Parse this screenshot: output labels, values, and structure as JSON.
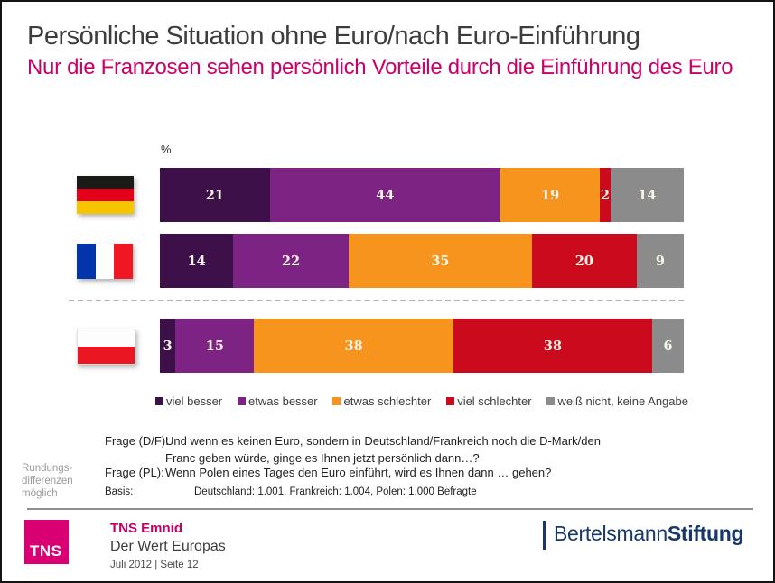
{
  "title": "Persönliche Situation ohne Euro/nach Euro-Einführung",
  "subtitle": "Nur die Franzosen sehen persönlich Vorteile durch die Einführung des Euro",
  "colors": {
    "subtitle": "#cb0068",
    "tns_magenta": "#d90074",
    "tns_emnid_text": "#c20062",
    "bertelsmann_navy": "#17386b"
  },
  "chart_data": {
    "type": "bar",
    "stacked": true,
    "orientation": "horizontal",
    "unit_label": "%",
    "categories": [
      "Deutschland",
      "Frankreich",
      "Polen"
    ],
    "series": [
      {
        "name": "viel besser",
        "color": "#3e1049",
        "values": [
          21,
          14,
          3
        ]
      },
      {
        "name": "etwas besser",
        "color": "#7d2383",
        "values": [
          44,
          22,
          15
        ]
      },
      {
        "name": "etwas schlechter",
        "color": "#f7941e",
        "values": [
          19,
          35,
          38
        ]
      },
      {
        "name": "viel schlechter",
        "color": "#cc0a1d",
        "values": [
          2,
          20,
          38
        ]
      },
      {
        "name": "weiß nicht, keine Angabe",
        "color": "#8b8b8b",
        "values": [
          14,
          9,
          6
        ]
      }
    ],
    "xlim": [
      0,
      100
    ],
    "legend_position": "bottom",
    "value_labels": "inside-center"
  },
  "flags": {
    "germany": {
      "direction": "horizontal",
      "stripes": [
        "#1a1a17",
        "#e2001a",
        "#f6c500"
      ]
    },
    "france": {
      "direction": "vertical",
      "stripes": [
        "#0235ab",
        "#ffffff",
        "#f01722"
      ]
    },
    "poland": {
      "direction": "horizontal",
      "stripes": [
        "#fdfdfd",
        "#ea1621"
      ]
    }
  },
  "rounding_note_lines": [
    "Rundungs-",
    "differenzen",
    "möglich"
  ],
  "footnotes": {
    "frage_df_label": "Frage (D/F):",
    "frage_df_lines": [
      "Und wenn es keinen Euro, sondern in Deutschland/Frankreich noch die D-Mark/den",
      "Franc geben würde, ginge es Ihnen jetzt persönlich dann…?"
    ],
    "frage_pl_label": "Frage (PL):",
    "frage_pl_text": "Wenn Polen eines Tages den Euro einführt, wird es Ihnen dann … gehen?",
    "basis_label": "Basis:",
    "basis_text": "Deutschland: 1.001, Frankreich: 1.004, Polen: 1.000 Befragte"
  },
  "footer": {
    "logo_text": "TNS",
    "brand": "TNS Emnid",
    "project": "Der Wert Europas",
    "date_page": "Juli 2012  |  Seite 12",
    "right_logo_part1": "Bertelsmann",
    "right_logo_part2": "Stiftung"
  }
}
